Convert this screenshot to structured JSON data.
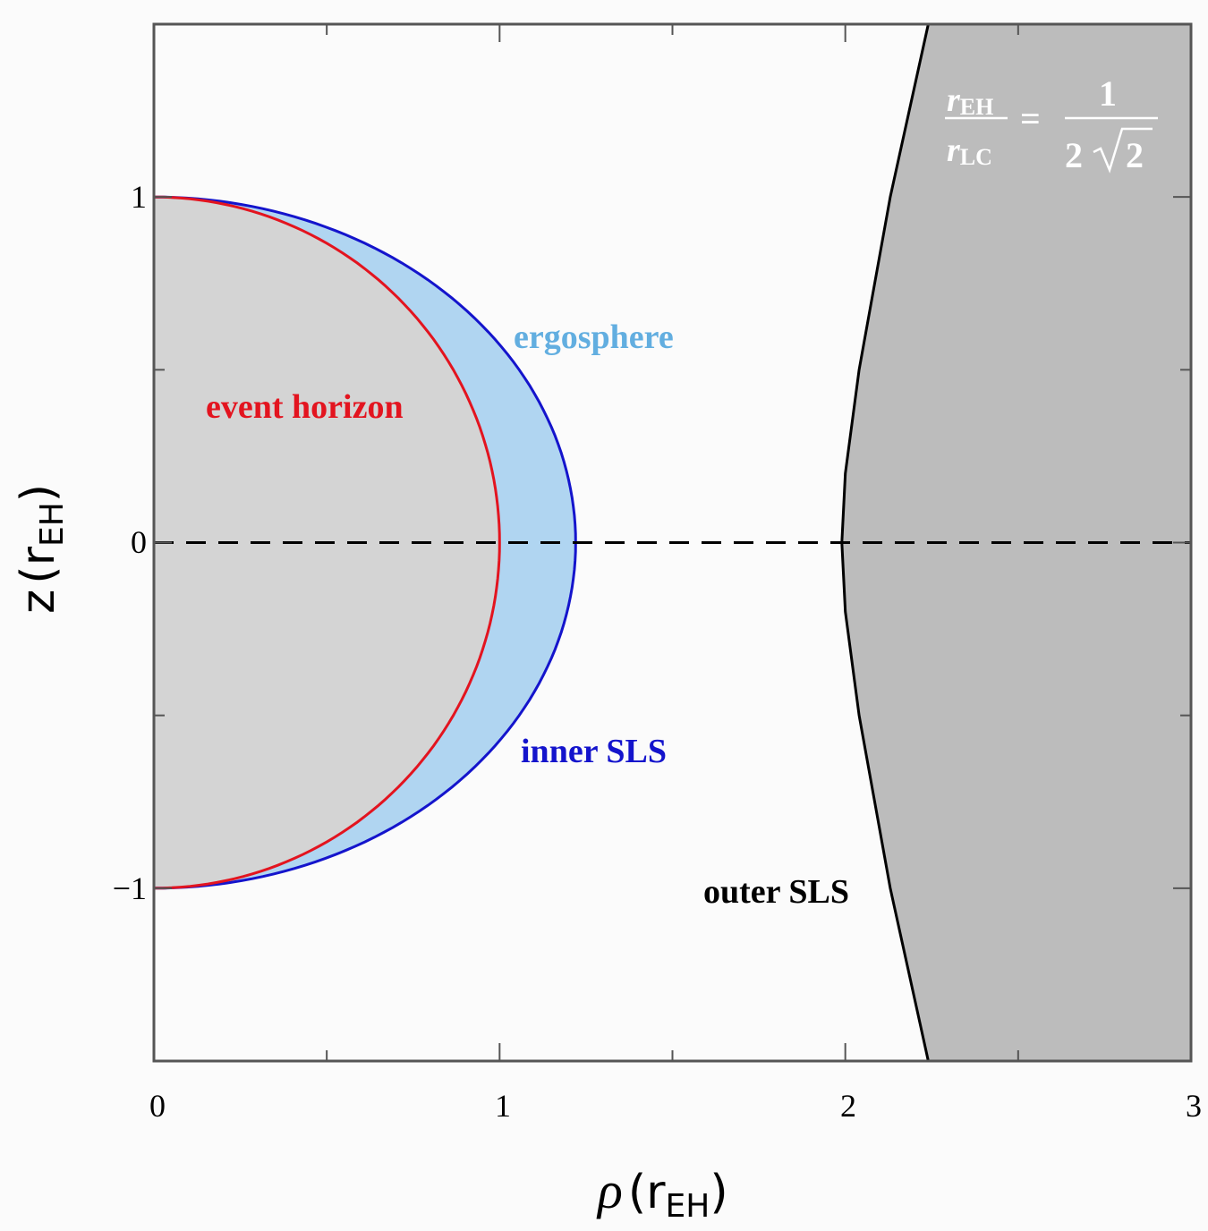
{
  "chart_data": {
    "type": "region-plot",
    "xlabel": {
      "symbol": "ρ",
      "unit_base": "r",
      "unit_sub": "EH"
    },
    "ylabel": {
      "symbol": "z",
      "unit_base": "r",
      "unit_sub": "EH"
    },
    "xlim": [
      0,
      3
    ],
    "ylim": [
      -1.5,
      1.5
    ],
    "xticks": [
      0,
      1,
      2,
      3
    ],
    "xtick_labels": [
      "0",
      "1",
      "2",
      "3"
    ],
    "yticks": [
      -1,
      0,
      1
    ],
    "ytick_labels": [
      "−1",
      "0",
      "1"
    ],
    "grid": false,
    "equator_line": {
      "z": 0,
      "style": "dashed"
    },
    "annotation": {
      "lhs_num": {
        "base": "r",
        "sub": "EH"
      },
      "lhs_den": {
        "base": "r",
        "sub": "LC"
      },
      "equals": "=",
      "rhs_num": "1",
      "rhs_den_coef": "2",
      "rhs_den_radicand": "2"
    },
    "regions": [
      {
        "name": "event horizon",
        "label_color": "#e3141f",
        "line_color": "#e3141f",
        "fill": "#d4d4d4",
        "shape": "semi-ellipse",
        "rho_max": 1.0,
        "z_max": 1.0
      },
      {
        "name": "ergosphere",
        "label_color": "#62aee0",
        "fill": "#b0d5f1",
        "shape": "between event horizon and inner SLS"
      },
      {
        "name": "inner SLS",
        "label_color": "#1414cc",
        "line_color": "#1414cc",
        "shape": "semi-ellipse",
        "rho_max": 1.22,
        "z_max": 1.0
      },
      {
        "name": "outer SLS",
        "label_color": "#000000",
        "line_color": "#000000",
        "fill": "#bcbcbc",
        "boundary": {
          "z": [
            -1.5,
            -1.0,
            -0.5,
            -0.2,
            0,
            0.2,
            0.5,
            1.0,
            1.5
          ],
          "rho": [
            2.24,
            2.13,
            2.04,
            2.0,
            1.99,
            2.0,
            2.04,
            2.13,
            2.24
          ]
        }
      }
    ]
  }
}
